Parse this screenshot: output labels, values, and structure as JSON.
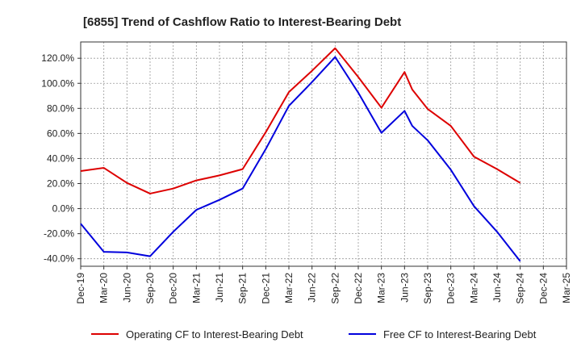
{
  "chart_data": {
    "type": "line",
    "title": "[6855]  Trend of Cashflow Ratio to Interest-Bearing Debt",
    "xlabel": "",
    "ylabel": "",
    "x_ticks": [
      "Dec-19",
      "Mar-20",
      "Jun-20",
      "Sep-20",
      "Dec-20",
      "Mar-21",
      "Jun-21",
      "Sep-21",
      "Dec-21",
      "Mar-22",
      "Jun-22",
      "Sep-22",
      "Dec-22",
      "Mar-23",
      "Jun-23",
      "Sep-23",
      "Dec-23",
      "Mar-24",
      "Jun-24",
      "Sep-24",
      "Dec-24",
      "Mar-25"
    ],
    "y_ticks": [
      -40,
      -20,
      0,
      20,
      40,
      60,
      80,
      100,
      120
    ],
    "y_tick_labels": [
      "-40.0%",
      "-20.0%",
      "0.0%",
      "20.0%",
      "40.0%",
      "60.0%",
      "80.0%",
      "100.0%",
      "120.0%"
    ],
    "ylim": [
      -46,
      133
    ],
    "grid": true,
    "legend_position": "bottom-center",
    "series": [
      {
        "name": "Operating CF to Interest-Bearing Debt",
        "color": "#dd0000",
        "x": [
          "Dec-19",
          "Mar-20",
          "Jun-20",
          "Sep-20",
          "Dec-20",
          "Mar-21",
          "Jun-21",
          "Sep-21",
          "Dec-21",
          "Mar-22",
          "Jun-22",
          "Sep-22",
          "Dec-22",
          "Mar-23",
          "Jun-23",
          "Jul-23",
          "Sep-23",
          "Dec-23",
          "Mar-24",
          "Jun-24",
          "Sep-24"
        ],
        "values": [
          30,
          32.5,
          20.5,
          12,
          16,
          22.5,
          26.5,
          31.5,
          61,
          93,
          110,
          128,
          105,
          80.5,
          109,
          95,
          79.5,
          66,
          41.5,
          31.5,
          20.5
        ]
      },
      {
        "name": "Free CF to Interest-Bearing Debt",
        "color": "#0000dd",
        "x": [
          "Dec-19",
          "Mar-20",
          "Jun-20",
          "Sep-20",
          "Dec-20",
          "Mar-21",
          "Jun-21",
          "Sep-21",
          "Dec-21",
          "Mar-22",
          "Jun-22",
          "Sep-22",
          "Dec-22",
          "Mar-23",
          "Jun-23",
          "Jul-23",
          "Sep-23",
          "Dec-23",
          "Mar-24",
          "Jun-24",
          "Sep-24"
        ],
        "values": [
          -12,
          -34.5,
          -35,
          -38,
          -18.5,
          -1,
          7,
          16,
          47.5,
          82,
          101,
          121,
          92.5,
          60.5,
          78,
          66,
          54.5,
          31,
          2,
          -18.5,
          -42
        ]
      }
    ]
  }
}
